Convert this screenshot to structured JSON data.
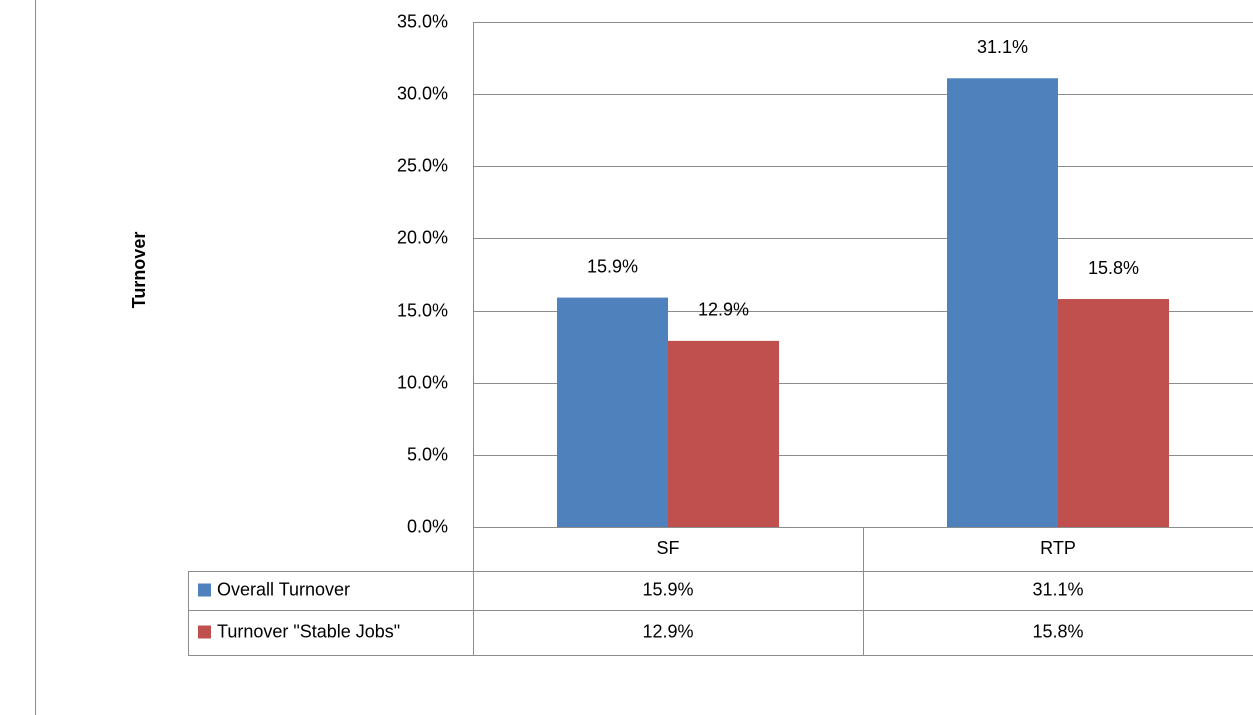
{
  "chart_data": {
    "type": "bar",
    "y_label": "Turnover",
    "categories": [
      "SF",
      "RTP"
    ],
    "series": [
      {
        "name": "Overall Turnover",
        "color": "#4f81bd",
        "values": [
          15.9,
          31.1
        ],
        "value_labels": [
          "15.9%",
          "31.1%"
        ]
      },
      {
        "name": "Turnover \"Stable Jobs\"",
        "color": "#c0504d",
        "values": [
          12.9,
          15.8
        ],
        "value_labels": [
          "12.9%",
          "15.8%"
        ]
      }
    ],
    "ylim": [
      0,
      35
    ],
    "yticks": [
      {
        "value": 0,
        "label": "0.0%"
      },
      {
        "value": 5,
        "label": "5.0%"
      },
      {
        "value": 10,
        "label": "10.0%"
      },
      {
        "value": 15,
        "label": "15.0%"
      },
      {
        "value": 20,
        "label": "20.0%"
      },
      {
        "value": 25,
        "label": "25.0%"
      },
      {
        "value": 30,
        "label": "30.0%"
      },
      {
        "value": 35,
        "label": "35.0%"
      }
    ],
    "grid": true,
    "data_table": true
  }
}
